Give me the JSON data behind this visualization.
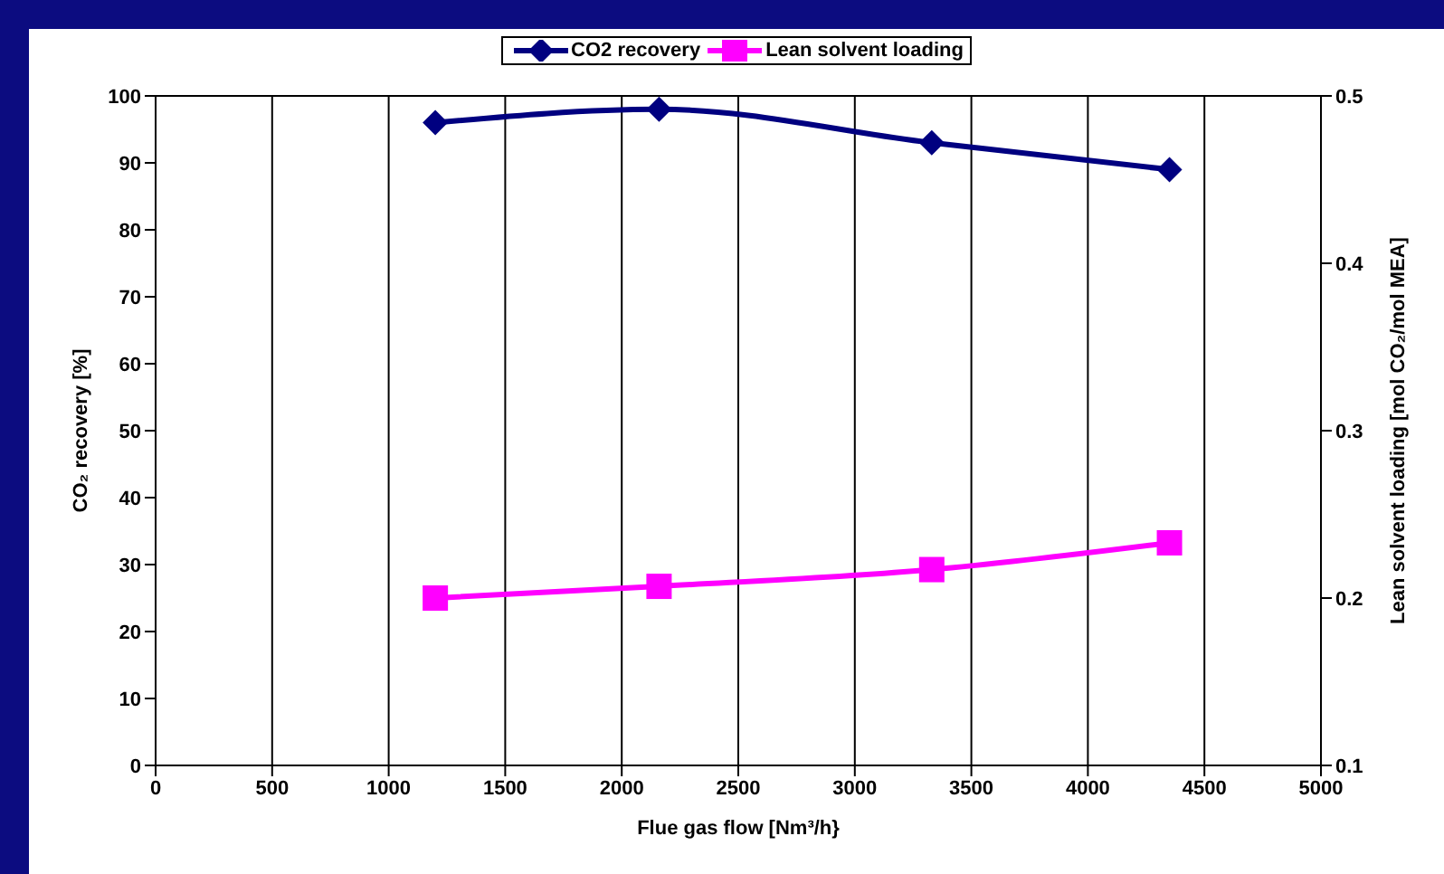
{
  "chart_data": {
    "type": "line",
    "xlabel": "Flue gas flow [Nm³/h}",
    "ylabel": "CO₂ recovery [%]",
    "y2label": "Lean solvent loading [mol CO₂/mol MEA]",
    "x": [
      1200,
      2160,
      3330,
      4350
    ],
    "series": [
      {
        "name": "CO2 recovery",
        "color": "#000080",
        "marker": "diamond",
        "values": [
          96,
          98,
          93,
          89
        ]
      },
      {
        "name": "Lean solvent loading",
        "color": "#ff00ff",
        "marker": "square",
        "axis": "y2",
        "values": [
          0.2,
          0.207,
          0.217,
          0.233
        ]
      }
    ],
    "xlim": [
      0,
      5000
    ],
    "xticks": [
      0,
      500,
      1000,
      1500,
      2000,
      2500,
      3000,
      3500,
      4000,
      4500,
      5000
    ],
    "ylim": [
      0,
      100
    ],
    "yticks": [
      0,
      10,
      20,
      30,
      40,
      50,
      60,
      70,
      80,
      90,
      100
    ],
    "y2lim": [
      0.1,
      0.5
    ],
    "y2ticks": [
      0.1,
      0.2,
      0.3,
      0.4,
      0.5
    ],
    "grid": true,
    "legend": "top",
    "line_style": "solid"
  }
}
